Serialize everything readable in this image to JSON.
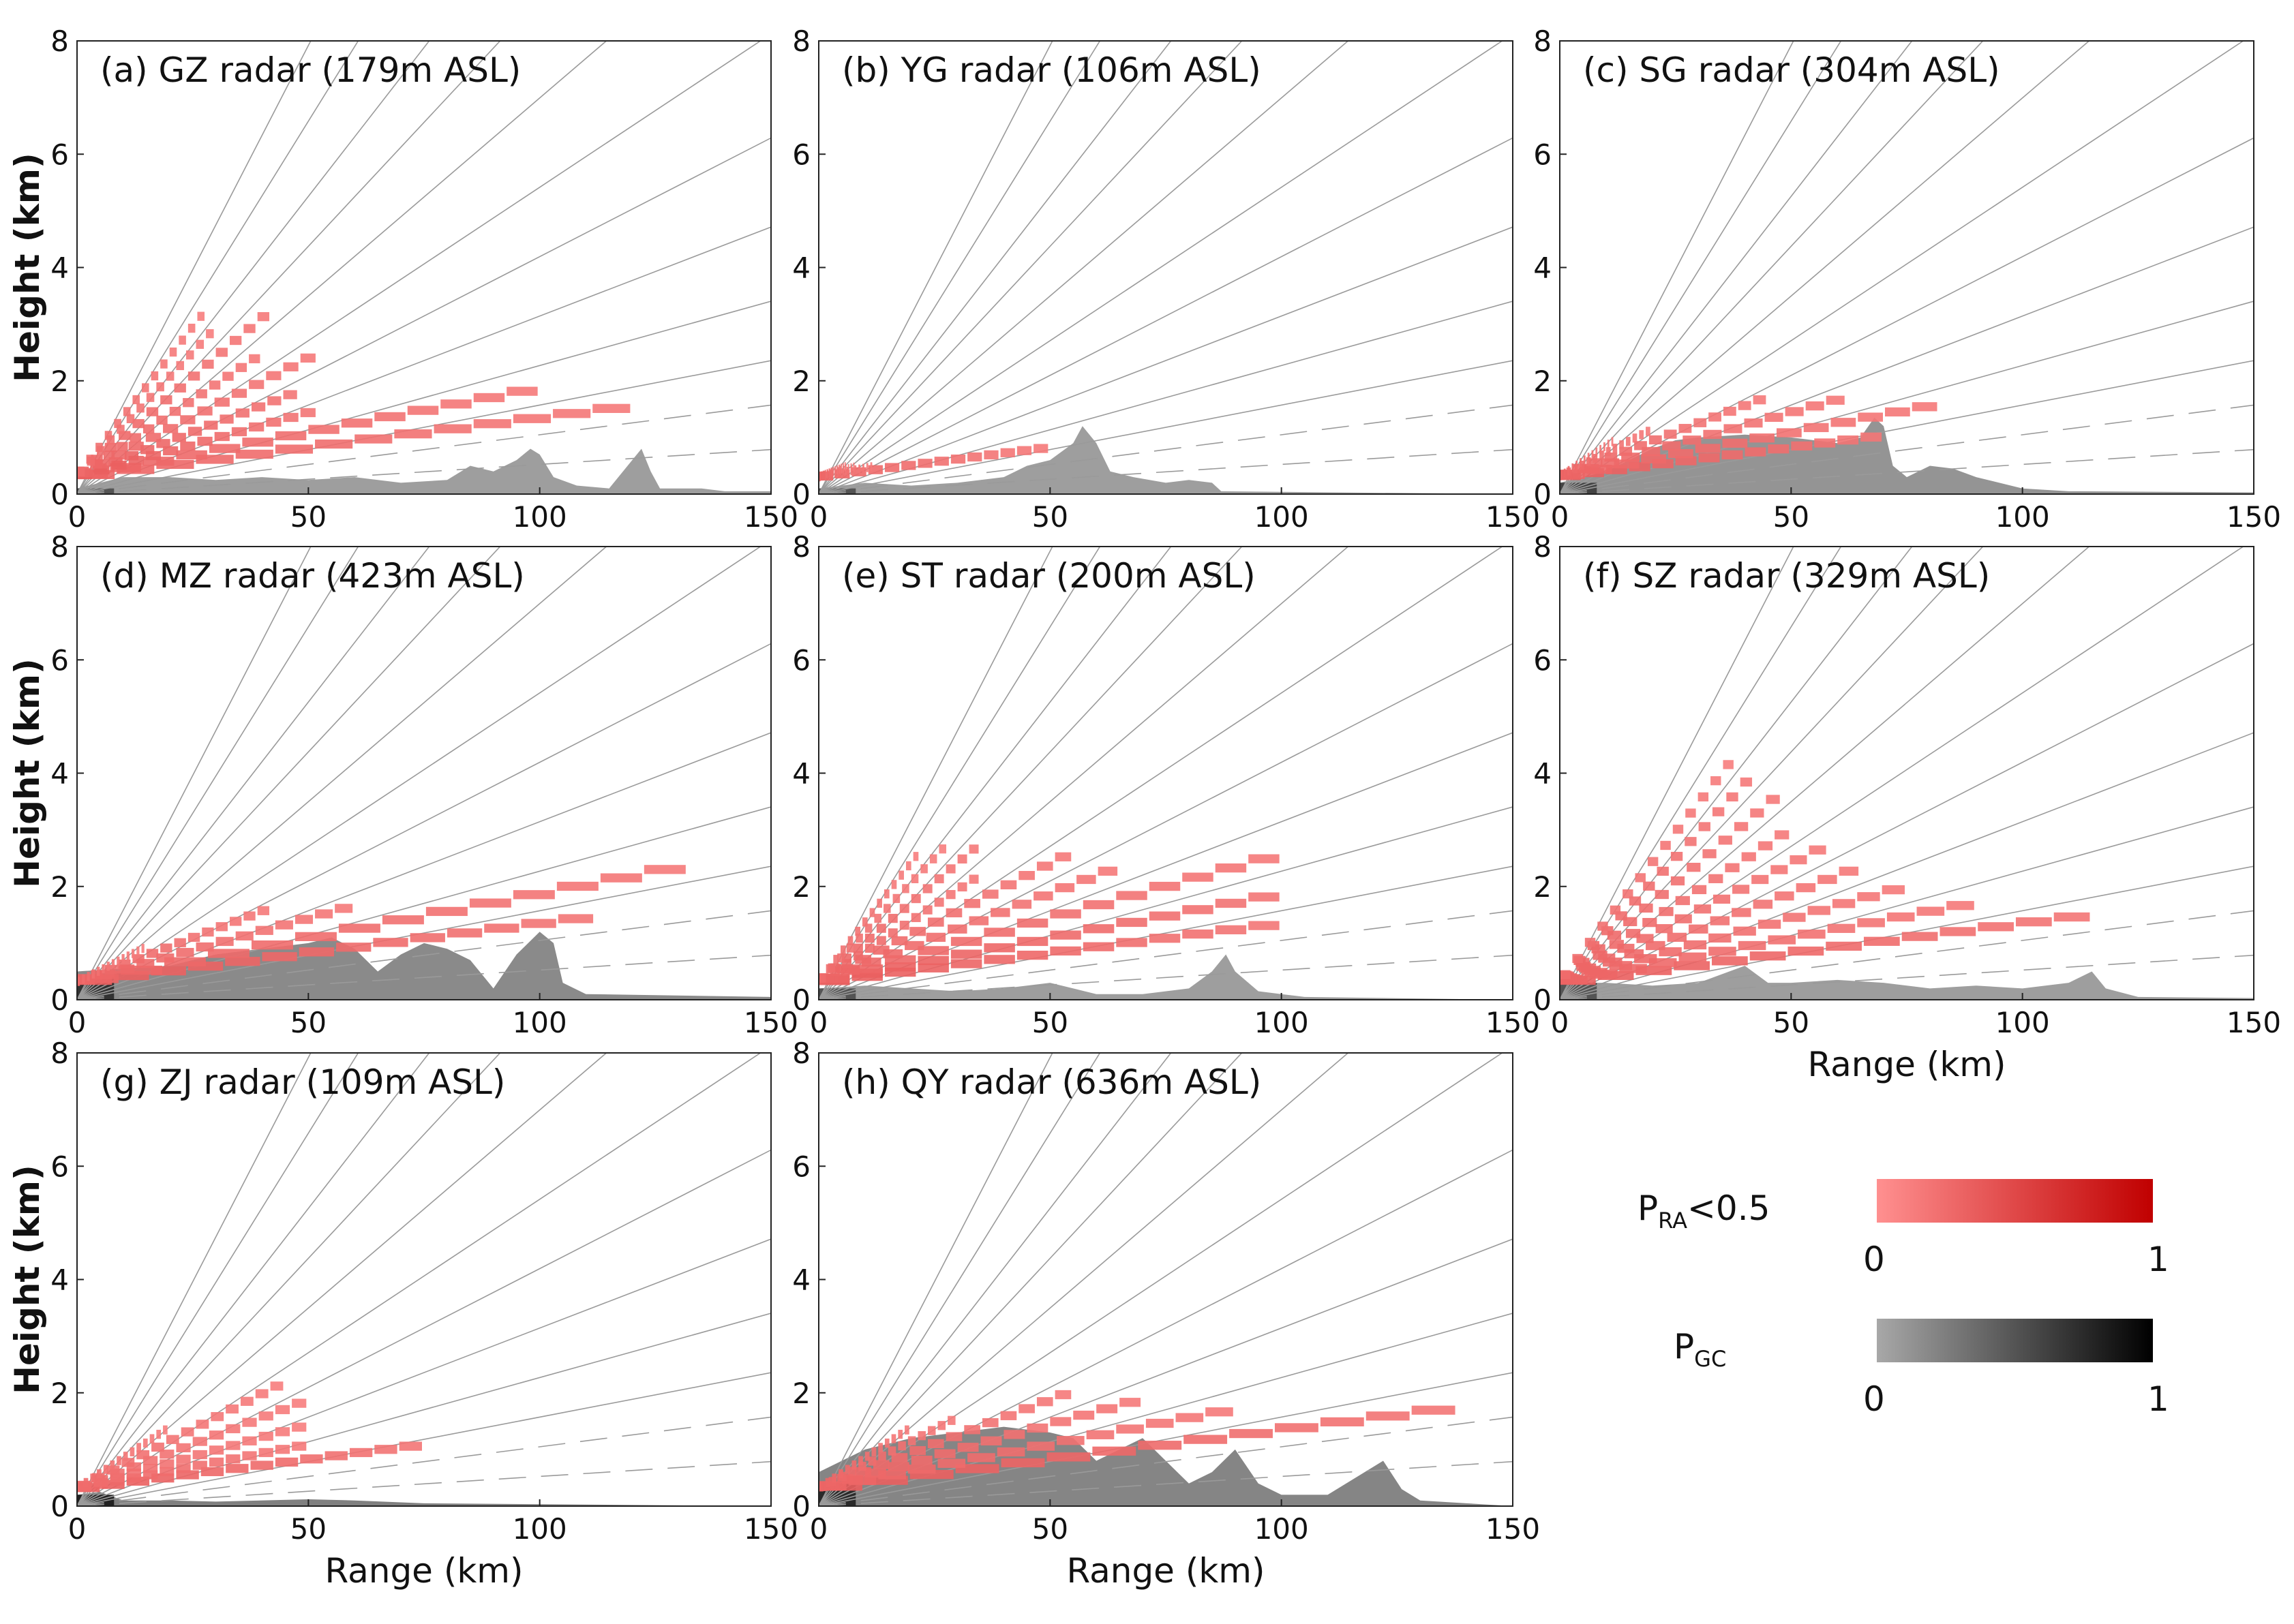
{
  "figure": {
    "xlabel": "Range (km)",
    "ylabel": "Height (km)",
    "x_ticks": [
      "0",
      "50",
      "100",
      "150"
    ],
    "y_ticks": [
      "0",
      "2",
      "4",
      "6",
      "8"
    ]
  },
  "chart_data": [
    {
      "id": "a",
      "type": "heatmap",
      "title": "(a) GZ radar (179m ASL)",
      "xlim": [
        0,
        150
      ],
      "ylim": [
        0,
        8
      ],
      "elev_top_deg": 0.3,
      "show_xlabel": false,
      "show_ylabel": true,
      "tilts": [
        {
          "max_range": 120,
          "intensity": 0.3
        },
        {
          "max_range": 100,
          "intensity": 0.3
        },
        {
          "max_range": 52,
          "intensity": 0.35
        },
        {
          "max_range": 48,
          "intensity": 0.35
        },
        {
          "max_range": 52,
          "intensity": 0.3
        },
        {
          "max_range": 40,
          "intensity": 0.3
        },
        {
          "max_range": 42,
          "intensity": 0.3
        },
        {
          "max_range": 30,
          "intensity": 0.25
        },
        {
          "max_range": 28,
          "intensity": 0.25
        }
      ],
      "ground_clutter": [
        [
          0,
          0.1
        ],
        [
          5,
          0.2
        ],
        [
          10,
          0.3
        ],
        [
          20,
          0.3
        ],
        [
          30,
          0.25
        ],
        [
          40,
          0.3
        ],
        [
          50,
          0.25
        ],
        [
          60,
          0.3
        ],
        [
          70,
          0.2
        ],
        [
          80,
          0.25
        ],
        [
          85,
          0.5
        ],
        [
          90,
          0.4
        ],
        [
          95,
          0.6
        ],
        [
          98,
          0.8
        ],
        [
          100,
          0.7
        ],
        [
          103,
          0.3
        ],
        [
          108,
          0.15
        ],
        [
          115,
          0.1
        ],
        [
          120,
          0.6
        ],
        [
          122,
          0.8
        ],
        [
          124,
          0.4
        ],
        [
          126,
          0.1
        ],
        [
          135,
          0.1
        ],
        [
          140,
          0.05
        ],
        [
          150,
          0.05
        ]
      ],
      "clutter_intensity": 0.1
    },
    {
      "id": "b",
      "type": "heatmap",
      "title": "(b) YG radar (106m ASL)",
      "xlim": [
        0,
        150
      ],
      "ylim": [
        0,
        8
      ],
      "elev_top_deg": 0.3,
      "show_xlabel": false,
      "show_ylabel": false,
      "tilts": [
        {
          "max_range": 50,
          "intensity": 0.3
        },
        {
          "max_range": 12,
          "intensity": 0.3
        },
        {
          "max_range": 8,
          "intensity": 0.3
        },
        {
          "max_range": 6,
          "intensity": 0.3
        }
      ],
      "ground_clutter": [
        [
          0,
          0.1
        ],
        [
          5,
          0.15
        ],
        [
          10,
          0.2
        ],
        [
          20,
          0.15
        ],
        [
          30,
          0.2
        ],
        [
          40,
          0.3
        ],
        [
          45,
          0.5
        ],
        [
          50,
          0.6
        ],
        [
          55,
          0.9
        ],
        [
          57,
          1.2
        ],
        [
          60,
          0.9
        ],
        [
          63,
          0.4
        ],
        [
          68,
          0.3
        ],
        [
          75,
          0.2
        ],
        [
          80,
          0.25
        ],
        [
          85,
          0.2
        ],
        [
          87,
          0.05
        ],
        [
          150,
          0.0
        ]
      ],
      "clutter_intensity": 0.1
    },
    {
      "id": "c",
      "type": "heatmap",
      "title": "(c) SG radar (304m ASL)",
      "xlim": [
        0,
        150
      ],
      "ylim": [
        0,
        8
      ],
      "elev_top_deg": 0.3,
      "show_xlabel": false,
      "show_ylabel": false,
      "tilts": [
        {
          "max_range": 70,
          "intensity": 0.35
        },
        {
          "max_range": 82,
          "intensity": 0.3
        },
        {
          "max_range": 62,
          "intensity": 0.3
        },
        {
          "max_range": 45,
          "intensity": 0.3
        },
        {
          "max_range": 20,
          "intensity": 0.3
        },
        {
          "max_range": 12,
          "intensity": 0.3
        }
      ],
      "ground_clutter": [
        [
          0,
          0.2
        ],
        [
          10,
          0.4
        ],
        [
          15,
          0.6
        ],
        [
          20,
          0.8
        ],
        [
          25,
          0.95
        ],
        [
          30,
          1.0
        ],
        [
          40,
          1.05
        ],
        [
          50,
          1.0
        ],
        [
          60,
          0.9
        ],
        [
          65,
          1.0
        ],
        [
          68,
          1.35
        ],
        [
          70,
          1.2
        ],
        [
          72,
          0.5
        ],
        [
          75,
          0.3
        ],
        [
          80,
          0.5
        ],
        [
          85,
          0.45
        ],
        [
          90,
          0.3
        ],
        [
          100,
          0.1
        ],
        [
          110,
          0.05
        ],
        [
          150,
          0.03
        ]
      ],
      "clutter_intensity": 0.2
    },
    {
      "id": "d",
      "type": "heatmap",
      "title": "(d) MZ radar (423m ASL)",
      "xlim": [
        0,
        150
      ],
      "ylim": [
        0,
        8
      ],
      "elev_top_deg": 0.3,
      "show_xlabel": false,
      "show_ylabel": true,
      "tilts": [
        {
          "max_range": 112,
          "intensity": 0.35
        },
        {
          "max_range": 132,
          "intensity": 0.3
        },
        {
          "max_range": 60,
          "intensity": 0.3
        },
        {
          "max_range": 42,
          "intensity": 0.3
        },
        {
          "max_range": 15,
          "intensity": 0.25
        }
      ],
      "ground_clutter": [
        [
          0,
          0.5
        ],
        [
          10,
          0.55
        ],
        [
          20,
          0.6
        ],
        [
          30,
          0.8
        ],
        [
          40,
          0.9
        ],
        [
          50,
          1.0
        ],
        [
          55,
          1.1
        ],
        [
          60,
          0.9
        ],
        [
          65,
          0.5
        ],
        [
          70,
          0.8
        ],
        [
          75,
          1.0
        ],
        [
          80,
          0.9
        ],
        [
          85,
          0.7
        ],
        [
          90,
          0.2
        ],
        [
          95,
          0.8
        ],
        [
          100,
          1.2
        ],
        [
          103,
          1.0
        ],
        [
          105,
          0.3
        ],
        [
          110,
          0.1
        ],
        [
          150,
          0.05
        ]
      ],
      "clutter_intensity": 0.3
    },
    {
      "id": "e",
      "type": "heatmap",
      "title": "(e) ST radar (200m ASL)",
      "xlim": [
        0,
        150
      ],
      "ylim": [
        0,
        8
      ],
      "elev_top_deg": 0.3,
      "show_xlabel": false,
      "show_ylabel": false,
      "tilts": [
        {
          "max_range": 100,
          "intensity": 0.35
        },
        {
          "max_range": 100,
          "intensity": 0.35
        },
        {
          "max_range": 100,
          "intensity": 0.3
        },
        {
          "max_range": 65,
          "intensity": 0.3
        },
        {
          "max_range": 55,
          "intensity": 0.3
        },
        {
          "max_range": 35,
          "intensity": 0.3
        },
        {
          "max_range": 35,
          "intensity": 0.3
        },
        {
          "max_range": 28,
          "intensity": 0.25
        },
        {
          "max_range": 22,
          "intensity": 0.25
        }
      ],
      "ground_clutter": [
        [
          0,
          0.2
        ],
        [
          10,
          0.25
        ],
        [
          20,
          0.2
        ],
        [
          30,
          0.15
        ],
        [
          40,
          0.2
        ],
        [
          50,
          0.3
        ],
        [
          55,
          0.2
        ],
        [
          60,
          0.1
        ],
        [
          70,
          0.1
        ],
        [
          80,
          0.2
        ],
        [
          85,
          0.5
        ],
        [
          88,
          0.8
        ],
        [
          90,
          0.5
        ],
        [
          95,
          0.15
        ],
        [
          100,
          0.1
        ],
        [
          105,
          0.05
        ],
        [
          150,
          0.0
        ]
      ],
      "clutter_intensity": 0.1
    },
    {
      "id": "f",
      "type": "heatmap",
      "title": "(f) SZ radar (329m ASL)",
      "xlim": [
        0,
        150
      ],
      "ylim": [
        0,
        8
      ],
      "elev_top_deg": 0.3,
      "show_xlabel": true,
      "show_ylabel": false,
      "tilts": [
        {
          "max_range": 115,
          "intensity": 0.35
        },
        {
          "max_range": 90,
          "intensity": 0.3
        },
        {
          "max_range": 75,
          "intensity": 0.3
        },
        {
          "max_range": 65,
          "intensity": 0.3
        },
        {
          "max_range": 58,
          "intensity": 0.3
        },
        {
          "max_range": 50,
          "intensity": 0.3
        },
        {
          "max_range": 48,
          "intensity": 0.3
        },
        {
          "max_range": 42,
          "intensity": 0.3
        },
        {
          "max_range": 38,
          "intensity": 0.25
        }
      ],
      "ground_clutter": [
        [
          0,
          0.3
        ],
        [
          10,
          0.3
        ],
        [
          20,
          0.25
        ],
        [
          30,
          0.3
        ],
        [
          40,
          0.6
        ],
        [
          45,
          0.3
        ],
        [
          50,
          0.3
        ],
        [
          60,
          0.35
        ],
        [
          70,
          0.3
        ],
        [
          80,
          0.2
        ],
        [
          90,
          0.25
        ],
        [
          100,
          0.2
        ],
        [
          110,
          0.3
        ],
        [
          115,
          0.5
        ],
        [
          118,
          0.2
        ],
        [
          125,
          0.05
        ],
        [
          150,
          0.03
        ]
      ],
      "clutter_intensity": 0.1
    },
    {
      "id": "g",
      "type": "heatmap",
      "title": "(g) ZJ radar  (109m ASL)",
      "xlim": [
        0,
        150
      ],
      "ylim": [
        0,
        8
      ],
      "elev_top_deg": 0.3,
      "show_xlabel": true,
      "show_ylabel": true,
      "tilts": [
        {
          "max_range": 75,
          "intensity": 0.35
        },
        {
          "max_range": 50,
          "intensity": 0.3
        },
        {
          "max_range": 50,
          "intensity": 0.25
        },
        {
          "max_range": 50,
          "intensity": 0.25
        },
        {
          "max_range": 45,
          "intensity": 0.25
        },
        {
          "max_range": 20,
          "intensity": 0.25
        }
      ],
      "ground_clutter": [
        [
          0,
          0.2
        ],
        [
          5,
          0.25
        ],
        [
          10,
          0.1
        ],
        [
          20,
          0.1
        ],
        [
          30,
          0.08
        ],
        [
          50,
          0.12
        ],
        [
          60,
          0.1
        ],
        [
          75,
          0.05
        ],
        [
          150,
          0.0
        ]
      ],
      "clutter_intensity": 0.4
    },
    {
      "id": "h",
      "type": "heatmap",
      "title": "(h) QY radar (636m ASL)",
      "xlim": [
        0,
        150
      ],
      "ylim": [
        0,
        8
      ],
      "elev_top_deg": 0.3,
      "show_xlabel": true,
      "show_ylabel": false,
      "tilts": [
        {
          "max_range": 138,
          "intensity": 0.35
        },
        {
          "max_range": 90,
          "intensity": 0.3
        },
        {
          "max_range": 70,
          "intensity": 0.3
        },
        {
          "max_range": 55,
          "intensity": 0.3
        },
        {
          "max_range": 30,
          "intensity": 0.3
        },
        {
          "max_range": 20,
          "intensity": 0.3
        }
      ],
      "ground_clutter": [
        [
          0,
          0.6
        ],
        [
          10,
          1.0
        ],
        [
          20,
          1.2
        ],
        [
          30,
          1.3
        ],
        [
          40,
          1.4
        ],
        [
          50,
          1.3
        ],
        [
          55,
          1.2
        ],
        [
          60,
          0.8
        ],
        [
          65,
          1.0
        ],
        [
          70,
          1.2
        ],
        [
          75,
          0.8
        ],
        [
          80,
          0.4
        ],
        [
          85,
          0.6
        ],
        [
          90,
          1.0
        ],
        [
          95,
          0.4
        ],
        [
          100,
          0.2
        ],
        [
          110,
          0.2
        ],
        [
          118,
          0.6
        ],
        [
          122,
          0.8
        ],
        [
          126,
          0.3
        ],
        [
          130,
          0.1
        ],
        [
          140,
          0.05
        ],
        [
          150,
          0.0
        ]
      ],
      "clutter_intensity": 0.35
    }
  ],
  "legend": {
    "ra_label": "P",
    "ra_sub": "RA",
    "ra_suffix": "<0.5",
    "gc_label": "P",
    "gc_sub": "GC",
    "min_label": "0",
    "max_label": "1",
    "ra_colors": [
      "#ff9090",
      "#c00000"
    ],
    "gc_colors": [
      "#a8a8a8",
      "#000000"
    ]
  }
}
